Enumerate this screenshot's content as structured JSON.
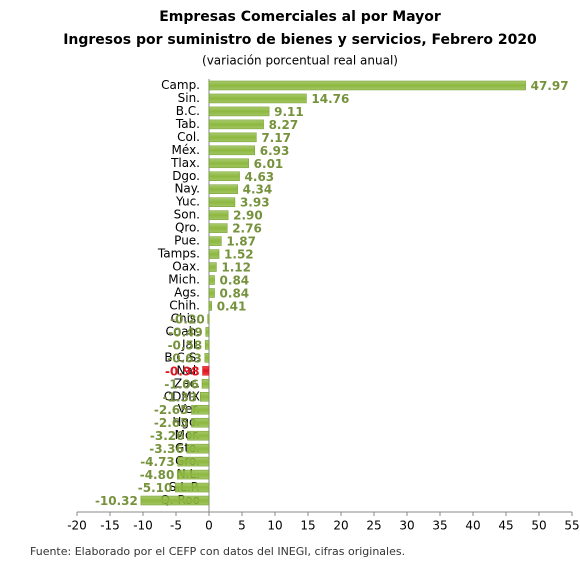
{
  "chart_data": {
    "type": "bar",
    "orientation": "horizontal",
    "title": "Empresas Comerciales al por Mayor",
    "subtitle": "Ingresos por suministro de bienes y servicios, Febrero 2020",
    "note": "(variación porcentual real anual)",
    "source": "Fuente: Elaborado por el CEFP con datos del INEGI, cifras originales.",
    "categories": [
      "Camp.",
      "Sin.",
      "B.C.",
      "Tab.",
      "Col.",
      "Méx.",
      "Tlax.",
      "Dgo.",
      "Nay.",
      "Yuc.",
      "Son.",
      "Qro.",
      "Pue.",
      "Tamps.",
      "Oax.",
      "Mich.",
      "Ags.",
      "Chih.",
      "Chis.",
      "Coah.",
      "Jal.",
      "B.C.S.",
      "Nal.",
      "Zac.",
      "CDMX",
      "Ver.",
      "Hgo.",
      "Mor.",
      "Gto.",
      "Gro.",
      "N.L.",
      "S.L.P.",
      "Q. Roo"
    ],
    "values": [
      47.97,
      14.76,
      9.11,
      8.27,
      7.17,
      6.93,
      6.01,
      4.63,
      4.34,
      3.93,
      2.9,
      2.76,
      1.87,
      1.52,
      1.12,
      0.84,
      0.84,
      0.41,
      -0.2,
      -0.49,
      -0.58,
      -0.63,
      -0.98,
      -1.06,
      -1.33,
      -2.65,
      -2.65,
      -3.26,
      -3.36,
      -4.73,
      -4.8,
      -5.1,
      -10.32
    ],
    "value_labels": [
      "47.97",
      "14.76",
      "9.11",
      "8.27",
      "7.17",
      "6.93",
      "6.01",
      "4.63",
      "4.34",
      "3.93",
      "2.90",
      "2.76",
      "1.87",
      "1.52",
      "1.12",
      "0.84",
      "0.84",
      "0.41",
      "-0.20",
      "-0.49",
      "-0.58",
      "-0.63",
      "-0.98",
      "-1.06",
      "-1.33",
      "-2.65",
      "-2.65",
      "-3.26",
      "-3.36",
      "-4.73",
      "-4.80",
      "-5.10",
      "-10.32"
    ],
    "color": "#8db83f",
    "label_color": "#76923c",
    "highlight_category": "Nal.",
    "highlight_color": "#e0141e",
    "xlim": [
      -20,
      55
    ],
    "xticks": [
      -20,
      -15,
      -10,
      -5,
      0,
      5,
      10,
      15,
      20,
      25,
      30,
      35,
      40,
      45,
      50,
      55
    ]
  }
}
